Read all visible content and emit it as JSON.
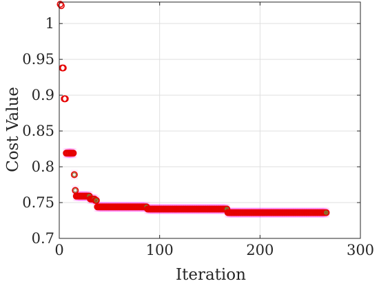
{
  "chart_data": {
    "type": "scatter",
    "title": "",
    "xlabel": "Iteration",
    "ylabel": "Cost Value",
    "xlim": [
      0,
      300
    ],
    "ylim": [
      0.7,
      1.03
    ],
    "x_ticks": [
      0,
      100,
      200,
      300
    ],
    "y_ticks": [
      0.7,
      0.75,
      0.8,
      0.85,
      0.9,
      0.95,
      1
    ],
    "x_tick_labels": [
      "0",
      "100",
      "200",
      "300"
    ],
    "y_tick_labels": [
      "0.7",
      "0.75",
      "0.8",
      "0.85",
      "0.9",
      "0.95",
      "1"
    ],
    "grid": true,
    "box": true,
    "marker": "circle-open",
    "colors": {
      "outer_marker": "#e60000",
      "inner_marker": "#7d7d32",
      "halo": "#ff00ff",
      "grid": "#dfdfdf",
      "axis": "#262626"
    },
    "steps": [
      {
        "from": 1,
        "to": 1,
        "value": 1.027
      },
      {
        "from": 2,
        "to": 2,
        "value": 1.025
      },
      {
        "from": 3,
        "to": 4,
        "value": 0.938
      },
      {
        "from": 5,
        "to": 6,
        "value": 0.895
      },
      {
        "from": 7,
        "to": 14,
        "value": 0.819
      },
      {
        "from": 15,
        "to": 15,
        "value": 0.789
      },
      {
        "from": 16,
        "to": 16,
        "value": 0.767
      },
      {
        "from": 17,
        "to": 30,
        "value": 0.759
      },
      {
        "from": 31,
        "to": 35,
        "value": 0.755
      },
      {
        "from": 36,
        "to": 37,
        "value": 0.753
      },
      {
        "from": 38,
        "to": 87,
        "value": 0.744
      },
      {
        "from": 88,
        "to": 167,
        "value": 0.741
      },
      {
        "from": 168,
        "to": 266,
        "value": 0.736
      }
    ]
  }
}
